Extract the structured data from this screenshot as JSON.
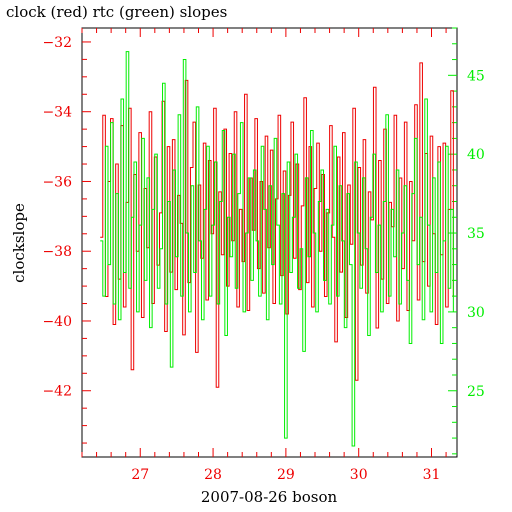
{
  "chart_data": {
    "type": "line",
    "title": "clock (red) rtc (green) slopes",
    "xlabel": "2007-08-26 boson",
    "ylabel": "clockslope",
    "y2label": "",
    "xlim": [
      26.2,
      31.35
    ],
    "ylim": [
      -43.9,
      -31.6
    ],
    "y2lim": [
      20.8,
      48.0
    ],
    "x_ticks": [
      27,
      28,
      29,
      30,
      31
    ],
    "y_ticks": [
      -32,
      -34,
      -36,
      -38,
      -40,
      -42
    ],
    "y2_ticks": [
      25,
      30,
      35,
      40,
      45
    ],
    "grid": false,
    "series": [
      {
        "name": "clock",
        "axis": "left",
        "color": "#ee0000",
        "x_start": 26.45,
        "x_end": 31.3,
        "values": [
          -37.6,
          -34.1,
          -39.3,
          -36.0,
          -34.2,
          -40.1,
          -35.5,
          -38.8,
          -34.4,
          -39.6,
          -36.6,
          -33.9,
          -41.4,
          -35.8,
          -38.0,
          -34.6,
          -39.9,
          -36.2,
          -37.9,
          -34.0,
          -39.5,
          -35.3,
          -38.4,
          -36.9,
          -33.7,
          -40.3,
          -35.0,
          -38.6,
          -34.8,
          -39.1,
          -36.4,
          -37.2,
          -40.4,
          -33.1,
          -38.9,
          -35.6,
          -34.3,
          -40.9,
          -36.1,
          -38.2,
          -34.9,
          -39.4,
          -35.4,
          -37.5,
          -33.9,
          -41.9,
          -36.3,
          -38.1,
          -34.5,
          -39.0,
          -35.2,
          -37.7,
          -34.0,
          -39.6,
          -36.8,
          -38.3,
          -33.5,
          -39.7,
          -35.9,
          -37.4,
          -34.2,
          -38.5,
          -36.0,
          -39.2,
          -34.7,
          -37.9,
          -35.1,
          -39.5,
          -36.5,
          -34.1,
          -38.7,
          -35.7,
          -39.8,
          -36.4,
          -34.3,
          -38.2,
          -35.5,
          -39.1,
          -36.7,
          -33.6,
          -38.9,
          -35.0,
          -39.6,
          -36.2,
          -34.9,
          -38.0,
          -35.8,
          -39.3,
          -36.9,
          -34.4,
          -37.6,
          -40.6,
          -35.3,
          -38.6,
          -34.6,
          -39.9,
          -36.1,
          -37.8,
          -33.9,
          -41.7,
          -35.6,
          -38.4,
          -34.8,
          -39.2,
          -36.3,
          -37.1,
          -33.3,
          -40.2,
          -35.4,
          -38.8,
          -34.5,
          -39.5,
          -36.6,
          -37.3,
          -34.1,
          -40.0,
          -35.9,
          -38.5,
          -34.3,
          -39.7,
          -36.0,
          -37.7,
          -33.8,
          -39.4,
          -32.6,
          -38.3,
          -35.2,
          -39.0,
          -34.7,
          -37.5,
          -40.1,
          -35.0,
          -38.1,
          -34.9,
          -39.6,
          -36.8,
          -33.4,
          -39.3
        ],
        "x_ticks_count_hint": ""
      },
      {
        "name": "rtc",
        "axis": "right",
        "color": "#00ee00",
        "x_start": 26.45,
        "x_end": 31.3,
        "values": [
          34.5,
          31.0,
          40.5,
          33.0,
          42.0,
          30.5,
          37.5,
          29.5,
          43.5,
          32.5,
          46.5,
          31.5,
          36.0,
          39.5,
          30.0,
          35.5,
          41.0,
          32.0,
          38.5,
          29.0,
          36.5,
          40.0,
          31.5,
          34.0,
          44.5,
          30.5,
          37.0,
          26.5,
          39.0,
          33.5,
          42.5,
          31.0,
          46.0,
          35.0,
          30.0,
          38.0,
          32.5,
          43.0,
          34.5,
          29.5,
          36.5,
          40.5,
          31.0,
          35.5,
          39.5,
          30.5,
          37.0,
          41.5,
          28.5,
          36.0,
          33.5,
          40.0,
          31.5,
          37.5,
          42.0,
          30.0,
          35.0,
          38.5,
          32.0,
          39.0,
          34.5,
          31.0,
          40.5,
          36.5,
          29.5,
          38.0,
          33.0,
          41.0,
          35.5,
          30.5,
          37.5,
          22.0,
          39.5,
          32.5,
          36.0,
          40.0,
          31.5,
          34.0,
          27.5,
          38.5,
          33.5,
          41.5,
          35.0,
          30.0,
          37.0,
          39.0,
          32.0,
          36.5,
          30.5,
          35.5,
          40.5,
          31.0,
          38.0,
          34.5,
          29.0,
          37.5,
          33.0,
          21.5,
          39.5,
          35.0,
          31.5,
          38.5,
          34.0,
          28.5,
          36.0,
          40.0,
          32.5,
          35.5,
          30.0,
          37.0,
          42.5,
          31.0,
          36.5,
          33.5,
          39.0,
          30.5,
          35.0,
          38.0,
          32.0,
          28.0,
          37.5,
          41.0,
          33.0,
          36.0,
          29.5,
          43.5,
          35.5,
          30.0,
          38.5,
          32.5,
          39.5,
          28.0,
          34.5,
          40.5,
          31.5,
          36.5,
          30.0
        ]
      }
    ]
  }
}
